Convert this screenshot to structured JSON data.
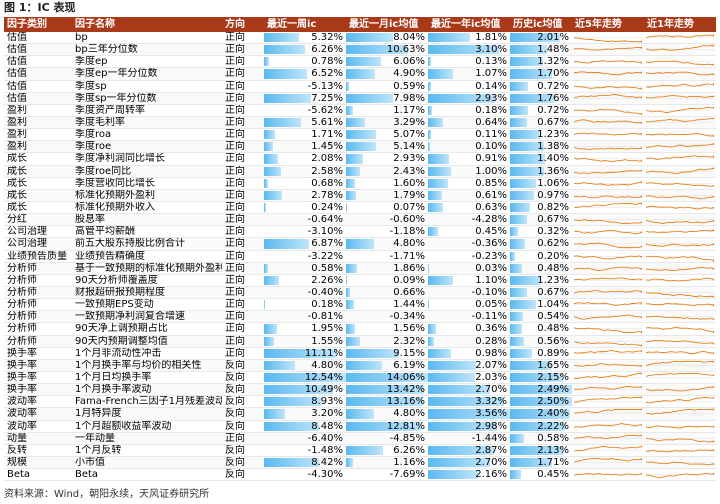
{
  "title": "图 1：IC 表现",
  "footer": "资料来源：Wind，朝阳永续，天风证券研究所",
  "colors": {
    "header_bg": "#a83a1a",
    "bar": "#5ab9ef",
    "spark": "#e8821a"
  },
  "headers": [
    "因子类别",
    "因子名称",
    "方向",
    "最近一周ic",
    "最近一月ic均值",
    "最近一年ic均值",
    "历史ic均值",
    "近5年走势",
    "近1年走势"
  ],
  "rows": [
    {
      "cat": "估值",
      "name": "bp",
      "dir": "正向",
      "w": "5.32%",
      "m": "8.04%",
      "y": "1.81%",
      "h": "2.01%"
    },
    {
      "cat": "估值",
      "name": "bp三年分位数",
      "dir": "正向",
      "w": "6.26%",
      "m": "10.63%",
      "y": "3.10%",
      "h": "1.48%"
    },
    {
      "cat": "估值",
      "name": "季度ep",
      "dir": "正向",
      "w": "0.78%",
      "m": "6.06%",
      "y": "0.13%",
      "h": "1.32%"
    },
    {
      "cat": "估值",
      "name": "季度ep一年分位数",
      "dir": "正向",
      "w": "6.52%",
      "m": "4.90%",
      "y": "1.07%",
      "h": "1.70%"
    },
    {
      "cat": "估值",
      "name": "季度sp",
      "dir": "正向",
      "w": "-5.13%",
      "m": "0.59%",
      "y": "0.14%",
      "h": "0.72%"
    },
    {
      "cat": "估值",
      "name": "季度sp一年分位数",
      "dir": "正向",
      "w": "7.25%",
      "m": "7.98%",
      "y": "2.93%",
      "h": "1.76%"
    },
    {
      "cat": "盈利",
      "name": "季度资产周转率",
      "dir": "正向",
      "w": "-5.62%",
      "m": "1.17%",
      "y": "0.18%",
      "h": "0.72%"
    },
    {
      "cat": "盈利",
      "name": "季度毛利率",
      "dir": "正向",
      "w": "5.61%",
      "m": "3.29%",
      "y": "0.64%",
      "h": "0.67%"
    },
    {
      "cat": "盈利",
      "name": "季度roa",
      "dir": "正向",
      "w": "1.71%",
      "m": "5.07%",
      "y": "0.11%",
      "h": "1.23%"
    },
    {
      "cat": "盈利",
      "name": "季度roe",
      "dir": "正向",
      "w": "1.45%",
      "m": "5.14%",
      "y": "0.10%",
      "h": "1.38%"
    },
    {
      "cat": "成长",
      "name": "季度净利润同比增长",
      "dir": "正向",
      "w": "2.08%",
      "m": "2.93%",
      "y": "0.91%",
      "h": "1.40%"
    },
    {
      "cat": "成长",
      "name": "季度roe同比",
      "dir": "正向",
      "w": "2.58%",
      "m": "2.43%",
      "y": "1.00%",
      "h": "1.36%"
    },
    {
      "cat": "成长",
      "name": "季度营收同比增长",
      "dir": "正向",
      "w": "0.68%",
      "m": "1.60%",
      "y": "0.85%",
      "h": "1.06%"
    },
    {
      "cat": "成长",
      "name": "标准化预期外盈利",
      "dir": "正向",
      "w": "2.78%",
      "m": "1.79%",
      "y": "0.61%",
      "h": "0.97%"
    },
    {
      "cat": "成长",
      "name": "标准化预期外收入",
      "dir": "正向",
      "w": "0.24%",
      "m": "0.07%",
      "y": "0.63%",
      "h": "0.82%"
    },
    {
      "cat": "分红",
      "name": "股息率",
      "dir": "正向",
      "w": "-0.64%",
      "m": "-0.60%",
      "y": "-4.28%",
      "h": "0.67%"
    },
    {
      "cat": "公司治理",
      "name": "高管平均薪酬",
      "dir": "正向",
      "w": "-3.10%",
      "m": "-1.18%",
      "y": "0.45%",
      "h": "0.32%"
    },
    {
      "cat": "公司治理",
      "name": "前五大股东持股比例合计",
      "dir": "正向",
      "w": "6.87%",
      "m": "4.80%",
      "y": "-0.36%",
      "h": "0.62%"
    },
    {
      "cat": "业绩预告质量",
      "name": "业绩预告精确度",
      "dir": "正向",
      "w": "-3.22%",
      "m": "-1.71%",
      "y": "-0.23%",
      "h": "0.20%"
    },
    {
      "cat": "分析师",
      "name": "基于一致预期的标准化预期外盈利",
      "dir": "正向",
      "w": "0.58%",
      "m": "1.86%",
      "y": "0.03%",
      "h": "0.48%"
    },
    {
      "cat": "分析师",
      "name": "90天分析师覆盖度",
      "dir": "正向",
      "w": "2.26%",
      "m": "0.09%",
      "y": "1.10%",
      "h": "1.23%"
    },
    {
      "cat": "分析师",
      "name": "财报超研报预期程度",
      "dir": "正向",
      "w": "-0.40%",
      "m": "0.66%",
      "y": "-0.10%",
      "h": "0.67%"
    },
    {
      "cat": "分析师",
      "name": "一致预期EPS变动",
      "dir": "正向",
      "w": "0.18%",
      "m": "1.44%",
      "y": "0.05%",
      "h": "1.04%"
    },
    {
      "cat": "分析师",
      "name": "一致预期净利润复合增速",
      "dir": "正向",
      "w": "-0.81%",
      "m": "-0.34%",
      "y": "-0.11%",
      "h": "0.54%"
    },
    {
      "cat": "分析师",
      "name": "90天净上调预期占比",
      "dir": "正向",
      "w": "1.95%",
      "m": "1.56%",
      "y": "0.36%",
      "h": "0.48%"
    },
    {
      "cat": "分析师",
      "name": "90天内预期调整均值",
      "dir": "正向",
      "w": "1.55%",
      "m": "2.32%",
      "y": "0.28%",
      "h": "0.56%"
    },
    {
      "cat": "换手率",
      "name": "1个月非流动性冲击",
      "dir": "正向",
      "w": "11.11%",
      "m": "9.15%",
      "y": "0.98%",
      "h": "0.89%"
    },
    {
      "cat": "换手率",
      "name": "1个月换手率与均价的相关性",
      "dir": "反向",
      "w": "4.80%",
      "m": "6.19%",
      "y": "2.07%",
      "h": "1.65%"
    },
    {
      "cat": "换手率",
      "name": "1个月日均换手率",
      "dir": "反向",
      "w": "12.54%",
      "m": "14.06%",
      "y": "2.03%",
      "h": "2.15%"
    },
    {
      "cat": "换手率",
      "name": "1个月换手率波动",
      "dir": "反向",
      "w": "10.49%",
      "m": "13.42%",
      "y": "2.70%",
      "h": "2.49%"
    },
    {
      "cat": "波动率",
      "name": "Fama-French三因子1月残差波动率",
      "dir": "反向",
      "w": "8.93%",
      "m": "13.16%",
      "y": "3.32%",
      "h": "2.50%"
    },
    {
      "cat": "波动率",
      "name": "1月特异度",
      "dir": "反向",
      "w": "3.20%",
      "m": "4.80%",
      "y": "3.56%",
      "h": "2.40%"
    },
    {
      "cat": "波动率",
      "name": "1个月超额收益率波动",
      "dir": "反向",
      "w": "8.48%",
      "m": "12.81%",
      "y": "2.98%",
      "h": "2.22%"
    },
    {
      "cat": "动量",
      "name": "一年动量",
      "dir": "正向",
      "w": "-6.40%",
      "m": "-4.85%",
      "y": "-1.44%",
      "h": "0.58%"
    },
    {
      "cat": "反转",
      "name": "1个月反转",
      "dir": "反向",
      "w": "-1.48%",
      "m": "6.26%",
      "y": "2.87%",
      "h": "2.13%"
    },
    {
      "cat": "规模",
      "name": "小市值",
      "dir": "反向",
      "w": "8.42%",
      "m": "1.16%",
      "y": "2.70%",
      "h": "1.71%"
    },
    {
      "cat": "Beta",
      "name": "Beta",
      "dir": "反向",
      "w": "-4.30%",
      "m": "-7.69%",
      "y": "2.16%",
      "h": "0.45%"
    }
  ]
}
